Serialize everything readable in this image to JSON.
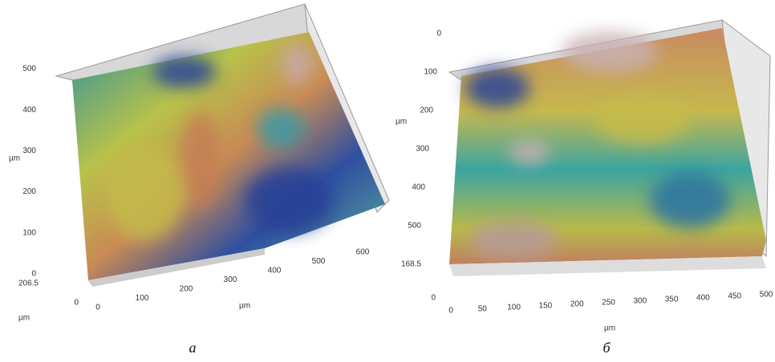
{
  "panels": [
    {
      "label": "а",
      "y_ticks": [
        "0",
        "100",
        "200",
        "300",
        "400",
        "500"
      ],
      "y_unit": "µm",
      "z_ticks": [
        "206.5",
        "0"
      ],
      "z_unit": "µm",
      "x_ticks": [
        "0",
        "100",
        "200",
        "300",
        "400",
        "500",
        "600"
      ],
      "x_unit": "µm"
    },
    {
      "label": "б",
      "y_ticks": [
        "0",
        "100",
        "200",
        "300",
        "400",
        "500"
      ],
      "y_unit": "µm",
      "z_ticks": [
        "168.5",
        "0"
      ],
      "x_ticks": [
        "0",
        "50",
        "100",
        "150",
        "200",
        "250",
        "300",
        "350",
        "400",
        "450",
        "500"
      ],
      "x_unit": "µm"
    }
  ]
}
